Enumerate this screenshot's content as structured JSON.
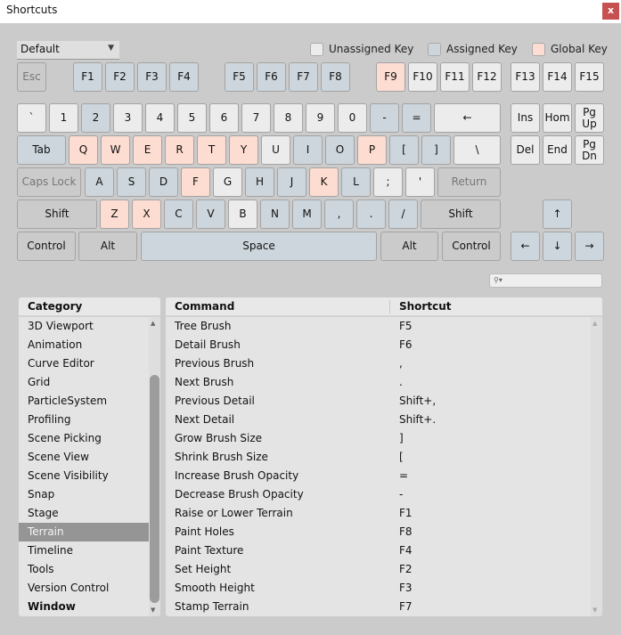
{
  "window": {
    "title": "Shortcuts",
    "close_label": "x"
  },
  "preset": {
    "selected": "Default"
  },
  "legend": [
    {
      "label": "Unassigned Key",
      "color": "#ececec"
    },
    {
      "label": "Assigned Key",
      "color": "#cdd6dc"
    },
    {
      "label": "Global Key",
      "color": "#fddcd1"
    }
  ],
  "colors": {
    "unassigned": "#ececec",
    "assigned": "#cdd6dc",
    "global": "#fddcd1",
    "selection": "#959595"
  },
  "keyboard": {
    "rows": [
      [
        {
          "l": "Esc",
          "s": "disabled"
        },
        {
          "l": "F1",
          "s": "assigned"
        },
        {
          "l": "F2",
          "s": "assigned"
        },
        {
          "l": "F3",
          "s": "assigned"
        },
        {
          "l": "F4",
          "s": "assigned"
        },
        {
          "l": "F5",
          "s": "assigned"
        },
        {
          "l": "F6",
          "s": "assigned"
        },
        {
          "l": "F7",
          "s": "assigned"
        },
        {
          "l": "F8",
          "s": "assigned"
        },
        {
          "l": "F9",
          "s": "global"
        },
        {
          "l": "F10",
          "s": "unassigned"
        },
        {
          "l": "F11",
          "s": "unassigned"
        },
        {
          "l": "F12",
          "s": "unassigned"
        },
        {
          "l": "F13",
          "s": "unassigned"
        },
        {
          "l": "F14",
          "s": "unassigned"
        },
        {
          "l": "F15",
          "s": "unassigned"
        }
      ],
      [
        {
          "l": "`",
          "s": "unassigned"
        },
        {
          "l": "1",
          "s": "unassigned"
        },
        {
          "l": "2",
          "s": "assigned"
        },
        {
          "l": "3",
          "s": "unassigned"
        },
        {
          "l": "4",
          "s": "unassigned"
        },
        {
          "l": "5",
          "s": "unassigned"
        },
        {
          "l": "6",
          "s": "unassigned"
        },
        {
          "l": "7",
          "s": "unassigned"
        },
        {
          "l": "8",
          "s": "unassigned"
        },
        {
          "l": "9",
          "s": "unassigned"
        },
        {
          "l": "0",
          "s": "unassigned"
        },
        {
          "l": "-",
          "s": "assigned"
        },
        {
          "l": "=",
          "s": "assigned"
        },
        {
          "l": "←",
          "s": "unassigned"
        },
        {
          "l": "Ins",
          "s": "unassigned"
        },
        {
          "l": "Hom",
          "s": "unassigned"
        },
        {
          "l": "Pg Up",
          "s": "unassigned"
        }
      ],
      [
        {
          "l": "Tab",
          "s": "assigned"
        },
        {
          "l": "Q",
          "s": "global"
        },
        {
          "l": "W",
          "s": "global"
        },
        {
          "l": "E",
          "s": "global"
        },
        {
          "l": "R",
          "s": "global"
        },
        {
          "l": "T",
          "s": "global"
        },
        {
          "l": "Y",
          "s": "global"
        },
        {
          "l": "U",
          "s": "unassigned"
        },
        {
          "l": "I",
          "s": "assigned"
        },
        {
          "l": "O",
          "s": "assigned"
        },
        {
          "l": "P",
          "s": "global"
        },
        {
          "l": "[",
          "s": "assigned"
        },
        {
          "l": "]",
          "s": "assigned"
        },
        {
          "l": "\\",
          "s": "unassigned"
        },
        {
          "l": "Del",
          "s": "unassigned"
        },
        {
          "l": "End",
          "s": "unassigned"
        },
        {
          "l": "Pg Dn",
          "s": "unassigned"
        }
      ],
      [
        {
          "l": "Caps Lock",
          "s": "disabled"
        },
        {
          "l": "A",
          "s": "assigned"
        },
        {
          "l": "S",
          "s": "assigned"
        },
        {
          "l": "D",
          "s": "assigned"
        },
        {
          "l": "F",
          "s": "global"
        },
        {
          "l": "G",
          "s": "unassigned"
        },
        {
          "l": "H",
          "s": "assigned"
        },
        {
          "l": "J",
          "s": "assigned"
        },
        {
          "l": "K",
          "s": "global"
        },
        {
          "l": "L",
          "s": "assigned"
        },
        {
          "l": ";",
          "s": "unassigned"
        },
        {
          "l": "'",
          "s": "unassigned"
        },
        {
          "l": "Return",
          "s": "disabled"
        }
      ],
      [
        {
          "l": "Shift",
          "s": "modifier"
        },
        {
          "l": "Z",
          "s": "global"
        },
        {
          "l": "X",
          "s": "global"
        },
        {
          "l": "C",
          "s": "assigned"
        },
        {
          "l": "V",
          "s": "assigned"
        },
        {
          "l": "B",
          "s": "unassigned"
        },
        {
          "l": "N",
          "s": "assigned"
        },
        {
          "l": "M",
          "s": "assigned"
        },
        {
          "l": ",",
          "s": "assigned"
        },
        {
          "l": ".",
          "s": "assigned"
        },
        {
          "l": "/",
          "s": "assigned"
        },
        {
          "l": "Shift",
          "s": "modifier"
        },
        {
          "l": "↑",
          "s": "assigned"
        }
      ],
      [
        {
          "l": "Control",
          "s": "modifier"
        },
        {
          "l": "Alt",
          "s": "modifier"
        },
        {
          "l": "Space",
          "s": "assigned"
        },
        {
          "l": "Alt",
          "s": "modifier"
        },
        {
          "l": "Control",
          "s": "modifier"
        },
        {
          "l": "←",
          "s": "assigned"
        },
        {
          "l": "↓",
          "s": "assigned"
        },
        {
          "l": "→",
          "s": "assigned"
        }
      ]
    ]
  },
  "search": {
    "placeholder": "",
    "icon": "search-icon"
  },
  "categories": {
    "header": "Category",
    "selected": "Terrain",
    "items": [
      "3D Viewport",
      "Animation",
      "Curve Editor",
      "Grid",
      "ParticleSystem",
      "Profiling",
      "Scene Picking",
      "Scene View",
      "Scene Visibility",
      "Snap",
      "Stage",
      "Terrain",
      "Timeline",
      "Tools",
      "Version Control",
      "Window"
    ]
  },
  "commands": {
    "headers": {
      "command": "Command",
      "shortcut": "Shortcut"
    },
    "rows": [
      {
        "command": "Tree Brush",
        "shortcut": "F5"
      },
      {
        "command": "Detail Brush",
        "shortcut": "F6"
      },
      {
        "command": "Previous Brush",
        "shortcut": ","
      },
      {
        "command": "Next Brush",
        "shortcut": "."
      },
      {
        "command": "Previous Detail",
        "shortcut": "Shift+,"
      },
      {
        "command": "Next Detail",
        "shortcut": "Shift+."
      },
      {
        "command": "Grow Brush Size",
        "shortcut": "]"
      },
      {
        "command": "Shrink Brush Size",
        "shortcut": "["
      },
      {
        "command": "Increase Brush Opacity",
        "shortcut": "="
      },
      {
        "command": "Decrease Brush Opacity",
        "shortcut": "-"
      },
      {
        "command": "Raise or Lower Terrain",
        "shortcut": "F1"
      },
      {
        "command": "Paint Holes",
        "shortcut": "F8"
      },
      {
        "command": "Paint Texture",
        "shortcut": "F4"
      },
      {
        "command": "Set Height",
        "shortcut": "F2"
      },
      {
        "command": "Smooth Height",
        "shortcut": "F3"
      },
      {
        "command": "Stamp Terrain",
        "shortcut": "F7"
      }
    ]
  }
}
